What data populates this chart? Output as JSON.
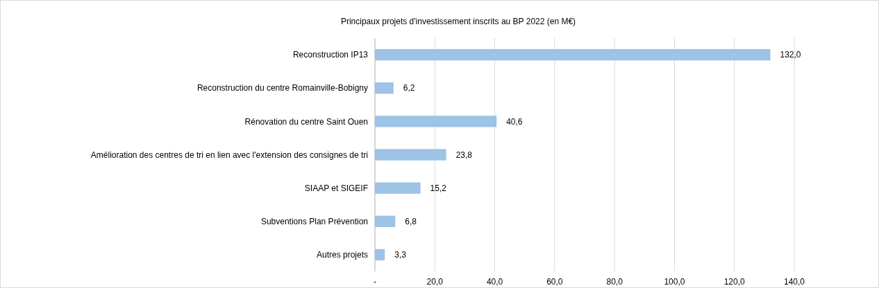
{
  "chart_data": {
    "type": "bar",
    "orientation": "horizontal",
    "title": "Principaux projets d'investissement inscrits au BP 2022 (en M€)",
    "categories": [
      "Reconstruction IP13",
      "Reconstruction du centre Romainville-Bobigny",
      "Rénovation du centre Saint Ouen",
      "Amélioration des centres de tri en lien avec l'extension des consignes de tri",
      "SIAAP et SIGEIF",
      "Subventions Plan Prévention",
      "Autres projets"
    ],
    "values": [
      132.0,
      6.2,
      40.6,
      23.8,
      15.2,
      6.8,
      3.3
    ],
    "value_labels": [
      "132,0",
      "6,2",
      "40,6",
      "23,8",
      "15,2",
      "6,8",
      "3,3"
    ],
    "color": "#9dc3e6",
    "xlim": [
      0,
      140
    ],
    "xticks": [
      {
        "value": 0,
        "label": "-"
      },
      {
        "value": 20,
        "label": "20,0"
      },
      {
        "value": 40,
        "label": "40,0"
      },
      {
        "value": 60,
        "label": "60,0"
      },
      {
        "value": 80,
        "label": "80,0"
      },
      {
        "value": 100,
        "label": "100,0"
      },
      {
        "value": 120,
        "label": "120,0"
      },
      {
        "value": 140,
        "label": "140,0"
      }
    ],
    "grid": "x"
  }
}
